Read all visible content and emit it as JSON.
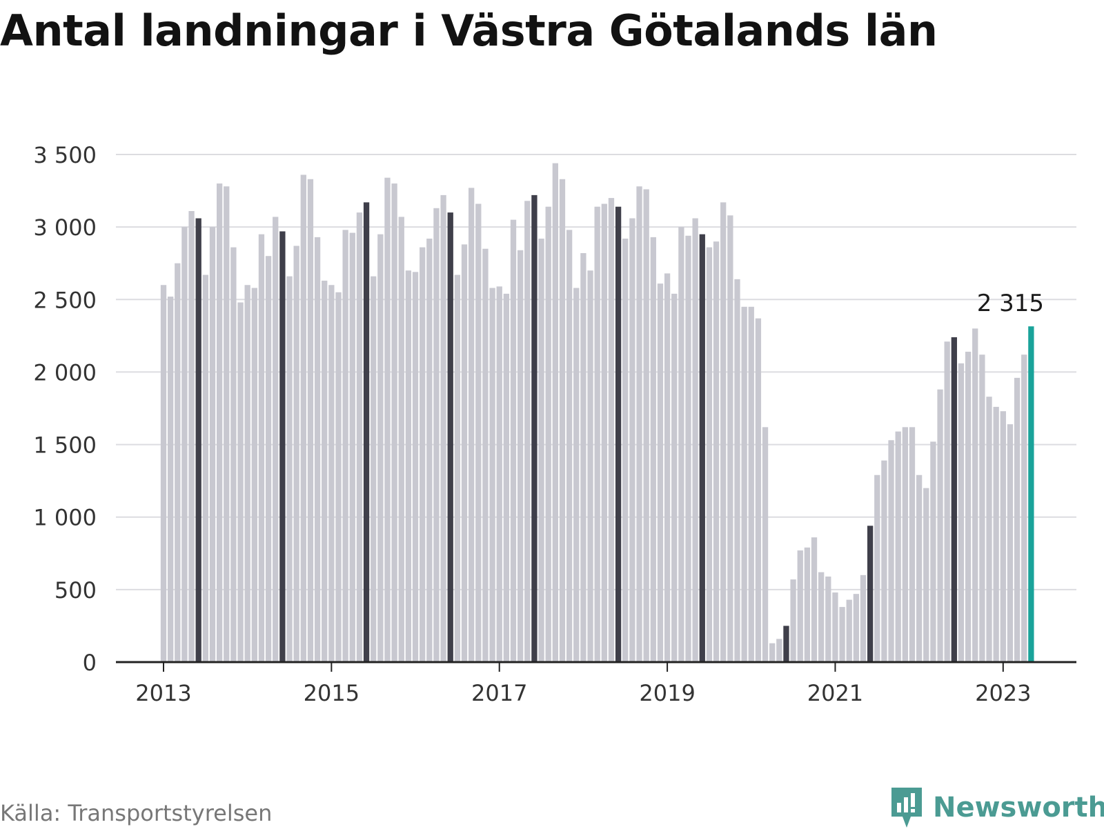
{
  "chart_data": {
    "type": "bar",
    "title": "Antal landningar i Västra Götalands län",
    "xlabel": "",
    "ylabel": "",
    "ylim": [
      0,
      3500
    ],
    "yticks": [
      0,
      500,
      1000,
      1500,
      2000,
      2500,
      3000,
      3500
    ],
    "ytick_labels": [
      "0",
      "500",
      "1 000",
      "1 500",
      "2 000",
      "2 500",
      "3 000",
      "3 500"
    ],
    "xtick_labels": [
      "2013",
      "2015",
      "2017",
      "2019",
      "2021",
      "2023"
    ],
    "grid": true,
    "start_year": 2013,
    "highlight_month": 6,
    "colors": {
      "default": "#c8c8d0",
      "highlight": "#3f3f4a",
      "latest": "#1aa39a"
    },
    "callout": {
      "label": "2 315",
      "value": 2315
    },
    "values": [
      2600,
      2520,
      2750,
      3000,
      3110,
      3060,
      2670,
      3000,
      3300,
      3280,
      2860,
      2480,
      2600,
      2580,
      2950,
      2800,
      3070,
      2970,
      2660,
      2870,
      3360,
      3330,
      2930,
      2630,
      2600,
      2550,
      2980,
      2960,
      3100,
      3170,
      2660,
      2950,
      3340,
      3300,
      3070,
      2700,
      2690,
      2860,
      2920,
      3130,
      3220,
      3100,
      2670,
      2880,
      3270,
      3160,
      2850,
      2580,
      2590,
      2540,
      3050,
      2840,
      3180,
      3220,
      2920,
      3140,
      3440,
      3330,
      2980,
      2580,
      2820,
      2700,
      3140,
      3160,
      3200,
      3140,
      2920,
      3060,
      3280,
      3260,
      2930,
      2610,
      2680,
      2540,
      3000,
      2940,
      3060,
      2950,
      2860,
      2900,
      3170,
      3080,
      2640,
      2450,
      2450,
      2370,
      1620,
      130,
      160,
      250,
      570,
      770,
      790,
      860,
      620,
      590,
      480,
      380,
      430,
      470,
      600,
      940,
      1290,
      1390,
      1530,
      1590,
      1620,
      1620,
      1290,
      1200,
      1520,
      1880,
      2210,
      2240,
      2060,
      2140,
      2300,
      2120,
      1830,
      1760,
      1730,
      1640,
      1960,
      2120,
      2315
    ]
  },
  "source": {
    "text": "Källa: Transportstyrelsen"
  },
  "logo": {
    "text": "Newsworthy",
    "icon": "newsworthy-bar-chart-icon"
  }
}
